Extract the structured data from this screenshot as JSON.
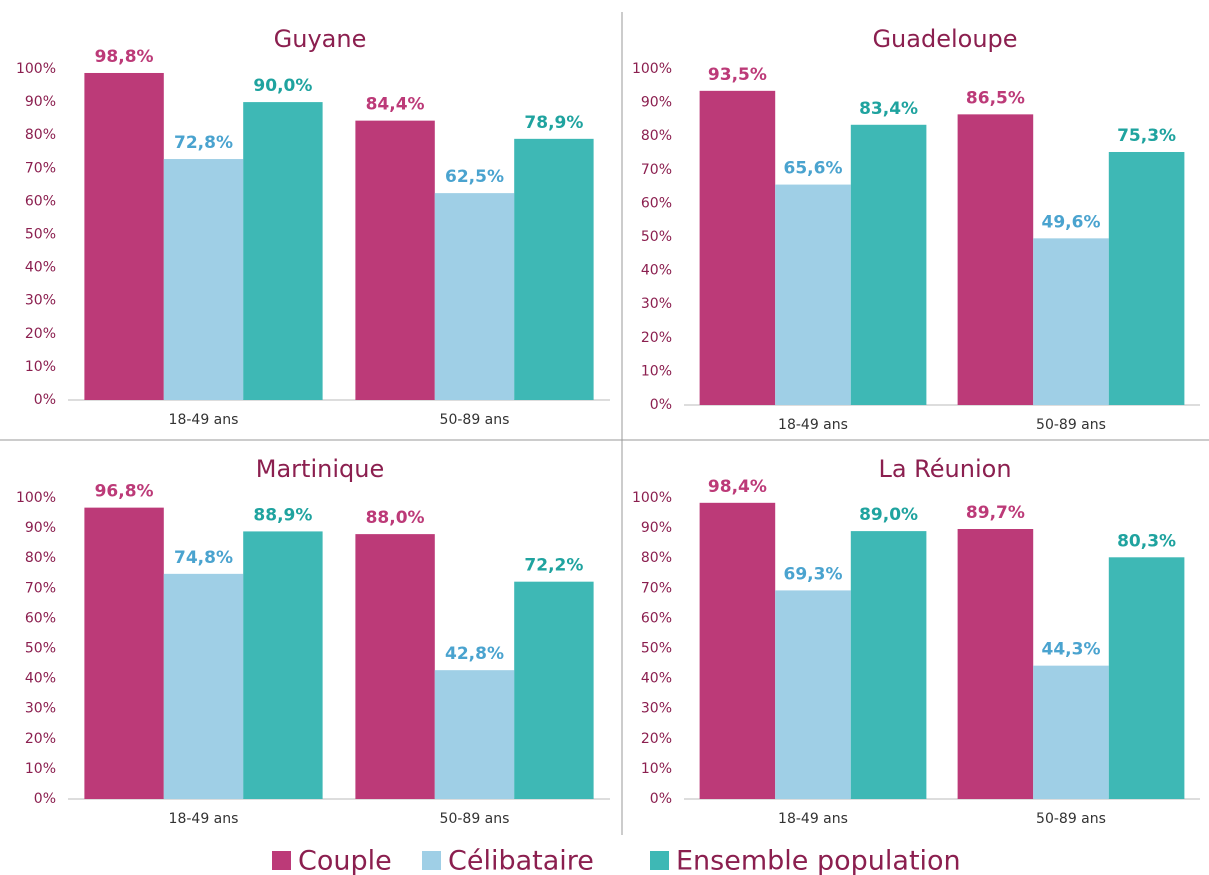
{
  "legend": [
    {
      "name": "Couple",
      "color": "#bc3a78"
    },
    {
      "name": "Célibataire",
      "color": "#9fcfe6"
    },
    {
      "name": "Ensemble population",
      "color": "#3eb8b5"
    }
  ],
  "chart_data": [
    {
      "type": "bar",
      "title": "Guyane",
      "categories": [
        "18-49 ans",
        "50-89 ans"
      ],
      "series": [
        {
          "values": [
            98.8,
            84.4
          ],
          "value_labels": [
            "98,8%",
            "84,4%"
          ]
        },
        {
          "values": [
            72.8,
            62.5
          ],
          "value_labels": [
            "72,8%",
            "62,5%"
          ]
        },
        {
          "values": [
            90.0,
            78.9
          ],
          "value_labels": [
            "90,0%",
            "78,9%"
          ]
        }
      ],
      "ylim": [
        0,
        100
      ],
      "yticks": [
        {
          "value": 0,
          "label": "0%"
        },
        {
          "value": 10,
          "label": "10%"
        },
        {
          "value": 20,
          "label": "20%"
        },
        {
          "value": 30,
          "label": "30%"
        },
        {
          "value": 40,
          "label": "40%"
        },
        {
          "value": 50,
          "label": "50%"
        },
        {
          "value": 60,
          "label": "60%"
        },
        {
          "value": 70,
          "label": "70%"
        },
        {
          "value": 80,
          "label": "80%"
        },
        {
          "value": 90,
          "label": "90%"
        },
        {
          "value": 100,
          "label": "100%"
        }
      ]
    },
    {
      "type": "bar",
      "title": "Guadeloupe",
      "categories": [
        "18-49 ans",
        "50-89 ans"
      ],
      "series": [
        {
          "values": [
            93.5,
            86.5
          ],
          "value_labels": [
            "93,5%",
            "86,5%"
          ]
        },
        {
          "values": [
            65.6,
            49.6
          ],
          "value_labels": [
            "65,6%",
            "49,6%"
          ]
        },
        {
          "values": [
            83.4,
            75.3
          ],
          "value_labels": [
            "83,4%",
            "75,3%"
          ]
        }
      ],
      "ylim": [
        0,
        100
      ],
      "yticks": [
        {
          "value": 0,
          "label": "0%"
        },
        {
          "value": 10,
          "label": "10%"
        },
        {
          "value": 20,
          "label": "20%"
        },
        {
          "value": 30,
          "label": "30%"
        },
        {
          "value": 40,
          "label": "40%"
        },
        {
          "value": 50,
          "label": "50%"
        },
        {
          "value": 60,
          "label": "60%"
        },
        {
          "value": 70,
          "label": "70%"
        },
        {
          "value": 80,
          "label": "80%"
        },
        {
          "value": 90,
          "label": "90%"
        },
        {
          "value": 100,
          "label": "100%"
        }
      ]
    },
    {
      "type": "bar",
      "title": "Martinique",
      "categories": [
        "18-49 ans",
        "50-89 ans"
      ],
      "series": [
        {
          "values": [
            96.8,
            88.0
          ],
          "value_labels": [
            "96,8%",
            "88,0%"
          ]
        },
        {
          "values": [
            74.8,
            42.8
          ],
          "value_labels": [
            "74,8%",
            "42,8%"
          ]
        },
        {
          "values": [
            88.9,
            72.2
          ],
          "value_labels": [
            "88,9%",
            "72,2%"
          ]
        }
      ],
      "ylim": [
        0,
        100
      ],
      "yticks": [
        {
          "value": 0,
          "label": "0%"
        },
        {
          "value": 10,
          "label": "10%"
        },
        {
          "value": 20,
          "label": "20%"
        },
        {
          "value": 30,
          "label": "30%"
        },
        {
          "value": 40,
          "label": "40%"
        },
        {
          "value": 50,
          "label": "50%"
        },
        {
          "value": 60,
          "label": "60%"
        },
        {
          "value": 70,
          "label": "70%"
        },
        {
          "value": 80,
          "label": "80%"
        },
        {
          "value": 90,
          "label": "90%"
        },
        {
          "value": 100,
          "label": "100%"
        }
      ]
    },
    {
      "type": "bar",
      "title": "La Réunion",
      "categories": [
        "18-49 ans",
        "50-89 ans"
      ],
      "series": [
        {
          "values": [
            98.4,
            89.7
          ],
          "value_labels": [
            "98,4%",
            "89,7%"
          ]
        },
        {
          "values": [
            69.3,
            44.3
          ],
          "value_labels": [
            "69,3%",
            "44,3%"
          ]
        },
        {
          "values": [
            89.0,
            80.3
          ],
          "value_labels": [
            "89,0%",
            "80,3%"
          ]
        }
      ],
      "ylim": [
        0,
        100
      ],
      "yticks": [
        {
          "value": 0,
          "label": "0%"
        },
        {
          "value": 10,
          "label": "10%"
        },
        {
          "value": 20,
          "label": "20%"
        },
        {
          "value": 30,
          "label": "30%"
        },
        {
          "value": 40,
          "label": "40%"
        },
        {
          "value": 50,
          "label": "50%"
        },
        {
          "value": 60,
          "label": "60%"
        },
        {
          "value": 70,
          "label": "70%"
        },
        {
          "value": 80,
          "label": "80%"
        },
        {
          "value": 90,
          "label": "90%"
        },
        {
          "value": 100,
          "label": "100%"
        }
      ]
    }
  ]
}
